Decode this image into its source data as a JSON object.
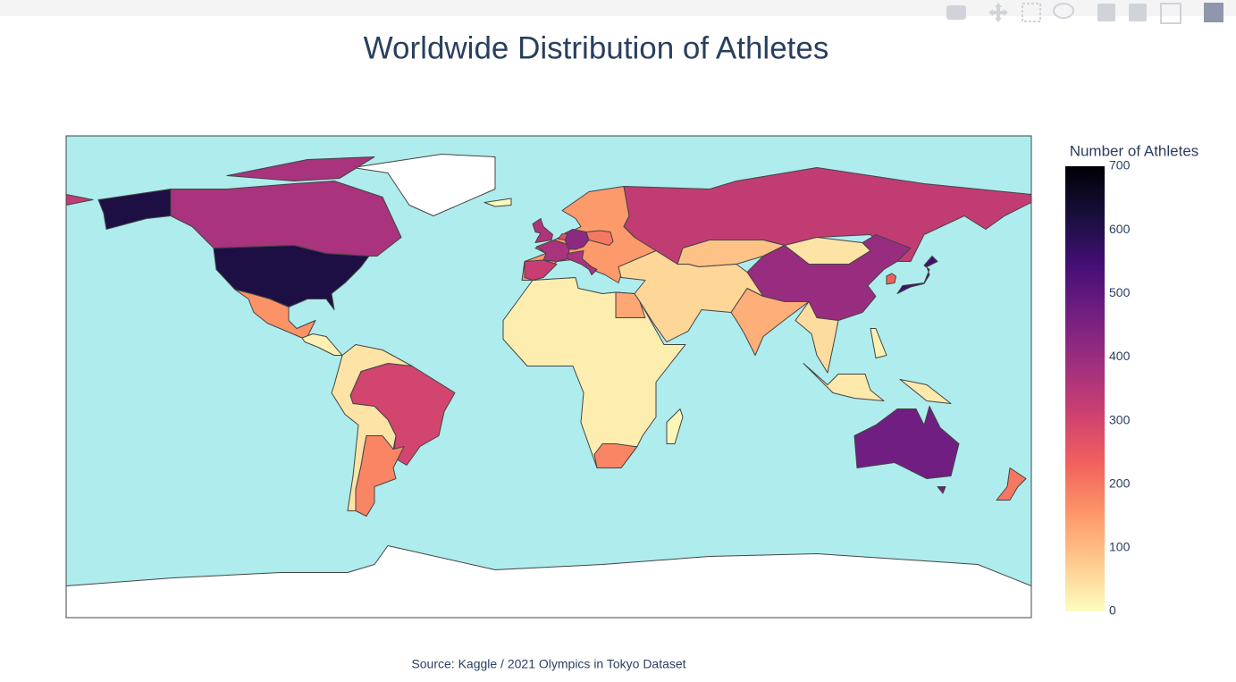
{
  "chart_data": {
    "type": "choropleth",
    "title": "Worldwide Distribution of Athletes",
    "annotation": "Source: Kaggle / 2021 Olympics in Tokyo Dataset",
    "colorbar_title": "Number of Athletes",
    "zlim": [
      0,
      700
    ],
    "zticks": [
      0,
      100,
      200,
      300,
      400,
      500,
      600,
      700
    ],
    "colorscale": [
      "#fcfdbf",
      "#feca8d",
      "#fd9668",
      "#f1605d",
      "#cd4071",
      "#9e2f7f",
      "#721f81",
      "#440f76",
      "#180f3d",
      "#000004"
    ],
    "values": [
      613,
      370,
      160,
      20,
      300,
      180,
      40,
      25,
      130,
      180,
      10,
      150,
      320,
      370,
      420,
      370,
      360,
      270,
      200,
      330,
      90,
      40,
      400,
      120,
      60,
      50,
      552,
      230,
      30,
      20,
      470,
      200,
      5
    ]
  }
}
